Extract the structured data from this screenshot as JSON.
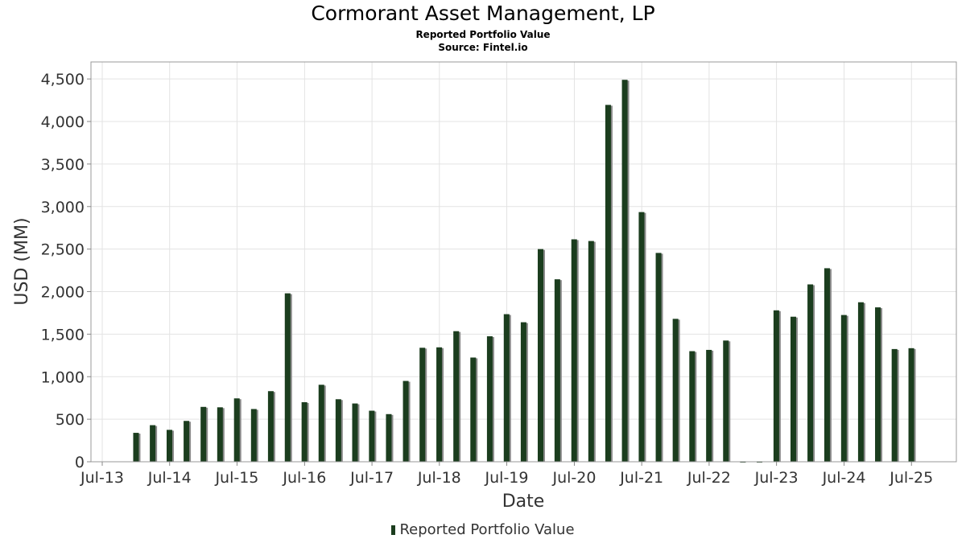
{
  "title": "Cormorant Asset Management, LP",
  "subtitle": "Reported Portfolio Value",
  "source": "Source: Fintel.io",
  "chart_data": {
    "type": "bar",
    "title": "Cormorant Asset Management, LP",
    "xlabel": "Date",
    "ylabel": "USD (MM)",
    "x_ticks": [
      "Jul-13",
      "Jul-14",
      "Jul-15",
      "Jul-16",
      "Jul-17",
      "Jul-18",
      "Jul-19",
      "Jul-20",
      "Jul-21",
      "Jul-22",
      "Jul-23",
      "Jul-24",
      "Jul-25"
    ],
    "y_ticks": [
      0,
      500,
      1000,
      1500,
      2000,
      2500,
      3000,
      3500,
      4000,
      4500
    ],
    "y_tick_labels": [
      "0",
      "500",
      "1,000",
      "1,500",
      "2,000",
      "2,500",
      "3,000",
      "3,500",
      "4,000",
      "4,500"
    ],
    "ylim": [
      0,
      4700
    ],
    "grid": true,
    "legend_position": "bottom",
    "colors": {
      "bar": "#1b3d1e",
      "shadow": "#8a8a8a"
    },
    "series": [
      {
        "name": "Reported Portfolio Value",
        "x": [
          "2013-12-31",
          "2014-03-31",
          "2014-06-30",
          "2014-09-30",
          "2014-12-31",
          "2015-03-31",
          "2015-06-30",
          "2015-09-30",
          "2015-12-31",
          "2016-03-31",
          "2016-06-30",
          "2016-09-30",
          "2016-12-31",
          "2017-03-31",
          "2017-06-30",
          "2017-09-30",
          "2017-12-31",
          "2018-03-31",
          "2018-06-30",
          "2018-09-30",
          "2018-12-31",
          "2019-03-31",
          "2019-06-30",
          "2019-09-30",
          "2019-12-31",
          "2020-03-31",
          "2020-06-30",
          "2020-09-30",
          "2020-12-31",
          "2021-03-31",
          "2021-06-30",
          "2021-09-30",
          "2021-12-31",
          "2022-03-31",
          "2022-06-30",
          "2022-09-30",
          "2022-12-31",
          "2023-03-31",
          "2023-06-30",
          "2023-09-30",
          "2023-12-31",
          "2024-03-31",
          "2024-06-30",
          "2024-09-30",
          "2024-12-31",
          "2025-03-31",
          "2025-06-30"
        ],
        "values": [
          340,
          430,
          375,
          480,
          645,
          640,
          745,
          620,
          830,
          1980,
          700,
          905,
          735,
          685,
          600,
          560,
          950,
          1340,
          1345,
          1535,
          1225,
          1475,
          1735,
          1640,
          2500,
          2145,
          2615,
          2595,
          4195,
          4490,
          2935,
          2455,
          1680,
          1300,
          1315,
          1425,
          0,
          0,
          1780,
          1705,
          2085,
          2275,
          1725,
          1875,
          1815,
          1325,
          1335
        ]
      }
    ]
  }
}
